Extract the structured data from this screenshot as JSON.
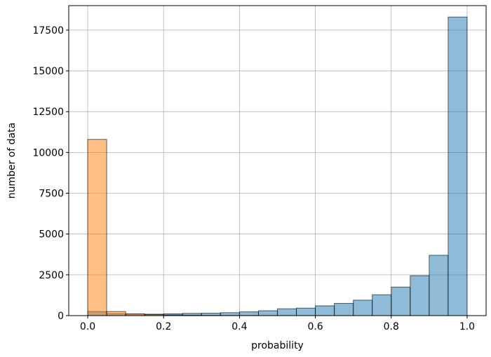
{
  "chart_data": {
    "type": "bar",
    "xlabel": "probability",
    "ylabel": "number of data",
    "xlim": [
      -0.05,
      1.05
    ],
    "ylim": [
      0,
      19000
    ],
    "xticks": [
      0.0,
      0.2,
      0.4,
      0.6,
      0.8,
      1.0
    ],
    "xtick_labels": [
      "0.0",
      "0.2",
      "0.4",
      "0.6",
      "0.8",
      "1.0"
    ],
    "yticks": [
      0,
      2500,
      5000,
      7500,
      10000,
      12500,
      15000,
      17500
    ],
    "ytick_labels": [
      "0",
      "2500",
      "5000",
      "7500",
      "10000",
      "12500",
      "15000",
      "17500"
    ],
    "grid": true,
    "bin_edges": [
      0.0,
      0.05,
      0.1,
      0.15,
      0.2,
      0.25,
      0.3,
      0.35,
      0.4,
      0.45,
      0.5,
      0.55,
      0.6,
      0.65,
      0.7,
      0.75,
      0.8,
      0.85,
      0.9,
      0.95,
      1.0
    ],
    "series": [
      {
        "color": "#1f77b4",
        "values": [
          250,
          120,
          90,
          90,
          110,
          140,
          150,
          180,
          230,
          300,
          420,
          460,
          600,
          750,
          950,
          1280,
          1750,
          2450,
          3700,
          18300
        ]
      },
      {
        "color": "#ff7f0e",
        "values": [
          10800,
          250,
          110,
          60,
          40,
          25,
          15,
          10,
          8,
          5,
          4,
          3,
          2,
          2,
          1,
          1,
          1,
          1,
          1,
          1
        ]
      }
    ]
  }
}
